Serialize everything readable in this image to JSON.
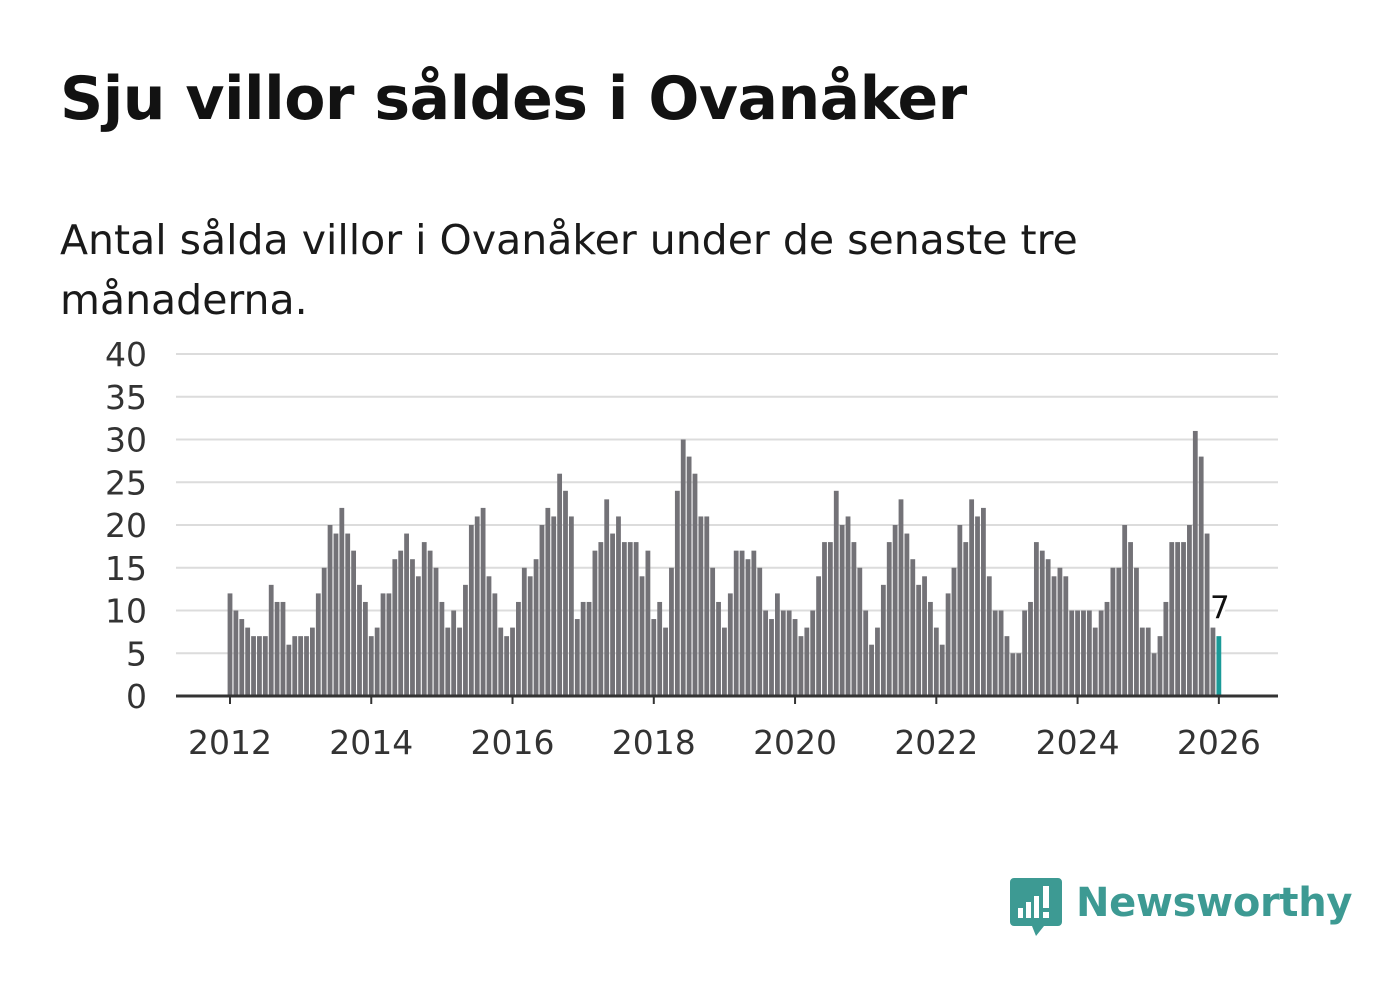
{
  "header": {
    "title": "Sju villor såldes i Ovanåker",
    "subtitle": "Antal sålda villor i Ovanåker under de senaste tre månaderna."
  },
  "brand": {
    "name": "Newsworthy",
    "icon": "newsworthy-logo-icon",
    "color": "#3d9a93"
  },
  "colors": {
    "bar": "#737277",
    "highlight": "#1a9a98",
    "grid": "#dcdcdc",
    "axis": "#333333"
  },
  "chart_data": {
    "type": "bar",
    "title": "Sju villor såldes i Ovanåker",
    "subtitle": "Antal sålda villor i Ovanåker under de senaste tre månaderna.",
    "xlabel": "",
    "ylabel": "",
    "ylim": [
      0,
      40
    ],
    "yticks": [
      0,
      5,
      10,
      15,
      20,
      25,
      30,
      35,
      40
    ],
    "ytick_labels": [
      "0",
      "5",
      "10",
      "15",
      "20",
      "25",
      "30",
      "35",
      "40"
    ],
    "xticks": [
      "2012",
      "2014",
      "2016",
      "2018",
      "2020",
      "2022",
      "2024",
      "2026"
    ],
    "start": "2012-01",
    "end": "2026-01",
    "grid": true,
    "highlight": {
      "label": "7",
      "index": 168,
      "value": 7
    },
    "series": [
      {
        "name": "Antal sålda villor",
        "values": [
          12,
          10,
          9,
          8,
          7,
          7,
          7,
          13,
          11,
          11,
          6,
          7,
          7,
          7,
          8,
          12,
          15,
          20,
          19,
          22,
          19,
          17,
          13,
          11,
          7,
          8,
          12,
          12,
          16,
          17,
          19,
          16,
          14,
          18,
          17,
          15,
          11,
          8,
          10,
          8,
          13,
          20,
          21,
          22,
          14,
          12,
          8,
          7,
          8,
          11,
          15,
          14,
          16,
          20,
          22,
          21,
          26,
          24,
          21,
          9,
          11,
          11,
          17,
          18,
          23,
          19,
          21,
          18,
          18,
          18,
          14,
          17,
          9,
          11,
          8,
          15,
          24,
          30,
          28,
          26,
          21,
          21,
          15,
          11,
          8,
          12,
          17,
          17,
          16,
          17,
          15,
          10,
          9,
          12,
          10,
          10,
          9,
          7,
          8,
          10,
          14,
          18,
          18,
          24,
          20,
          21,
          18,
          15,
          10,
          6,
          8,
          13,
          18,
          20,
          23,
          19,
          16,
          13,
          14,
          11,
          8,
          6,
          12,
          15,
          20,
          18,
          23,
          21,
          22,
          14,
          10,
          10,
          7,
          5,
          5,
          10,
          11,
          18,
          17,
          16,
          14,
          15,
          14,
          10,
          10,
          10,
          10,
          8,
          10,
          11,
          15,
          15,
          20,
          18,
          15,
          8,
          8,
          5,
          7,
          11,
          18,
          18,
          18,
          20,
          31,
          28,
          19,
          8,
          7
        ]
      }
    ]
  }
}
